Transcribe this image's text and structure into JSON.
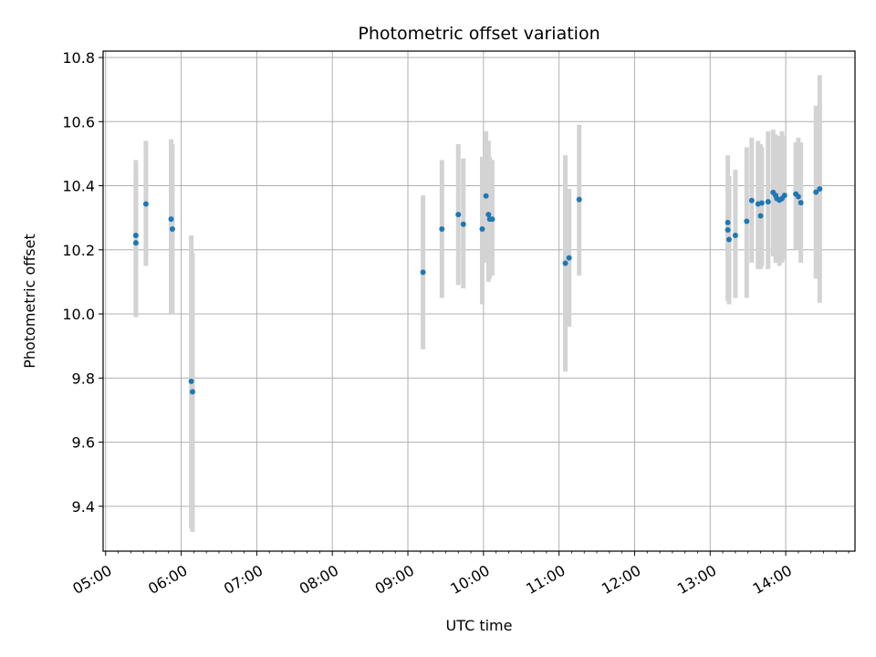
{
  "chart_data": {
    "type": "scatter",
    "title": "Photometric offset variation",
    "xlabel": "UTC time",
    "ylabel": "Photometric offset",
    "x_tick_labels": [
      "05:00",
      "06:00",
      "07:00",
      "08:00",
      "09:00",
      "10:00",
      "11:00",
      "12:00",
      "13:00",
      "14:00"
    ],
    "y_tick_labels": [
      "9.4",
      "9.6",
      "9.8",
      "10.0",
      "10.2",
      "10.4",
      "10.6",
      "10.8"
    ],
    "xlim": [
      "04:58",
      "14:55"
    ],
    "ylim": [
      9.26,
      10.82
    ],
    "grid": true,
    "colors": {
      "point": "#1f77b4",
      "errorbar": "#d3d3d3",
      "grid": "#b0b0b0"
    },
    "points": [
      {
        "t": "05:24",
        "y": 10.245,
        "lo": 9.99,
        "hi": 10.48
      },
      {
        "t": "05:24",
        "y": 10.222,
        "lo": 10.0,
        "hi": 10.44
      },
      {
        "t": "05:32",
        "y": 10.343,
        "lo": 10.15,
        "hi": 10.54
      },
      {
        "t": "05:52",
        "y": 10.296,
        "lo": 10.0,
        "hi": 10.545
      },
      {
        "t": "05:53",
        "y": 10.265,
        "lo": 10.0,
        "hi": 10.53
      },
      {
        "t": "06:08",
        "y": 9.79,
        "lo": 9.33,
        "hi": 10.245
      },
      {
        "t": "06:09",
        "y": 9.757,
        "lo": 9.32,
        "hi": 10.19
      },
      {
        "t": "09:12",
        "y": 10.13,
        "lo": 9.89,
        "hi": 10.37
      },
      {
        "t": "09:27",
        "y": 10.265,
        "lo": 10.05,
        "hi": 10.48
      },
      {
        "t": "09:40",
        "y": 10.31,
        "lo": 10.09,
        "hi": 10.53
      },
      {
        "t": "09:44",
        "y": 10.28,
        "lo": 10.08,
        "hi": 10.485
      },
      {
        "t": "09:59",
        "y": 10.265,
        "lo": 10.03,
        "hi": 10.49
      },
      {
        "t": "10:02",
        "y": 10.368,
        "lo": 10.16,
        "hi": 10.57
      },
      {
        "t": "10:04",
        "y": 10.31,
        "lo": 10.1,
        "hi": 10.54
      },
      {
        "t": "10:05",
        "y": 10.296,
        "lo": 10.11,
        "hi": 10.49
      },
      {
        "t": "10:07",
        "y": 10.296,
        "lo": 10.12,
        "hi": 10.48
      },
      {
        "t": "11:05",
        "y": 10.158,
        "lo": 9.82,
        "hi": 10.495
      },
      {
        "t": "11:08",
        "y": 10.175,
        "lo": 9.96,
        "hi": 10.39
      },
      {
        "t": "11:16",
        "y": 10.357,
        "lo": 10.12,
        "hi": 10.59
      },
      {
        "t": "13:14",
        "y": 10.285,
        "lo": 10.04,
        "hi": 10.495
      },
      {
        "t": "13:14",
        "y": 10.262,
        "lo": 10.05,
        "hi": 10.47
      },
      {
        "t": "13:15",
        "y": 10.232,
        "lo": 10.03,
        "hi": 10.43
      },
      {
        "t": "13:20",
        "y": 10.245,
        "lo": 10.05,
        "hi": 10.45
      },
      {
        "t": "13:29",
        "y": 10.289,
        "lo": 10.05,
        "hi": 10.52
      },
      {
        "t": "13:33",
        "y": 10.354,
        "lo": 10.16,
        "hi": 10.55
      },
      {
        "t": "13:38",
        "y": 10.343,
        "lo": 10.14,
        "hi": 10.54
      },
      {
        "t": "13:40",
        "y": 10.306,
        "lo": 10.14,
        "hi": 10.53
      },
      {
        "t": "13:41",
        "y": 10.346,
        "lo": 10.15,
        "hi": 10.52
      },
      {
        "t": "13:46",
        "y": 10.35,
        "lo": 10.14,
        "hi": 10.57
      },
      {
        "t": "13:50",
        "y": 10.379,
        "lo": 10.18,
        "hi": 10.575
      },
      {
        "t": "13:52",
        "y": 10.37,
        "lo": 10.16,
        "hi": 10.56
      },
      {
        "t": "13:53",
        "y": 10.36,
        "lo": 10.16,
        "hi": 10.555
      },
      {
        "t": "13:55",
        "y": 10.355,
        "lo": 10.15,
        "hi": 10.555
      },
      {
        "t": "13:57",
        "y": 10.36,
        "lo": 10.16,
        "hi": 10.57
      },
      {
        "t": "13:59",
        "y": 10.37,
        "lo": 10.17,
        "hi": 10.555
      },
      {
        "t": "14:08",
        "y": 10.374,
        "lo": 10.2,
        "hi": 10.535
      },
      {
        "t": "14:10",
        "y": 10.366,
        "lo": 10.2,
        "hi": 10.55
      },
      {
        "t": "14:12",
        "y": 10.347,
        "lo": 10.16,
        "hi": 10.535
      },
      {
        "t": "14:24",
        "y": 10.38,
        "lo": 10.11,
        "hi": 10.65
      },
      {
        "t": "14:27",
        "y": 10.39,
        "lo": 10.035,
        "hi": 10.745
      }
    ]
  }
}
